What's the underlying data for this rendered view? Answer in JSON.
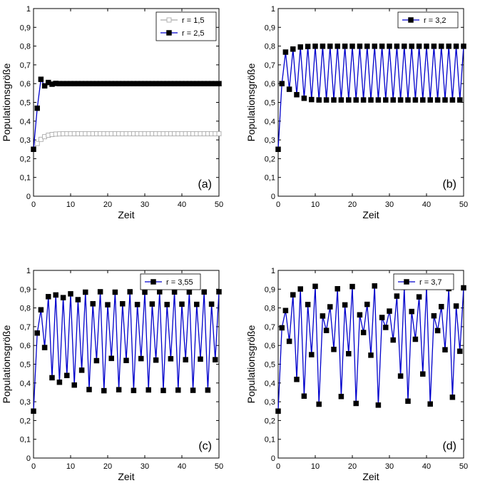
{
  "chart_data": [
    {
      "type": "line",
      "panel_label": "(a)",
      "xlabel": "Zeit",
      "ylabel": "Populationsgröße",
      "xlim": [
        0,
        50
      ],
      "ylim": [
        0,
        1
      ],
      "xticks": [
        "0",
        "10",
        "20",
        "30",
        "40",
        "50"
      ],
      "yticks": [
        "0",
        "0,1",
        "0,2",
        "0,3",
        "0,4",
        "0,5",
        "0,6",
        "0,7",
        "0,8",
        "0,9",
        "1"
      ],
      "legend_position": "top-right",
      "series": [
        {
          "name": "r = 1,5",
          "color": "#aaaaaa",
          "marker": "open-square",
          "x": [
            0,
            1,
            2,
            3,
            4,
            5,
            6,
            7,
            8,
            9,
            10,
            11,
            12,
            13,
            14,
            15,
            16,
            17,
            18,
            19,
            20,
            21,
            22,
            23,
            24,
            25,
            26,
            27,
            28,
            29,
            30,
            31,
            32,
            33,
            34,
            35,
            36,
            37,
            38,
            39,
            40,
            41,
            42,
            43,
            44,
            45,
            46,
            47,
            48,
            49,
            50
          ],
          "values": [
            0.25,
            0.281,
            0.303,
            0.317,
            0.325,
            0.329,
            0.331,
            0.332,
            0.333,
            0.333,
            0.333,
            0.333,
            0.333,
            0.333,
            0.333,
            0.333,
            0.333,
            0.333,
            0.333,
            0.333,
            0.333,
            0.333,
            0.333,
            0.333,
            0.333,
            0.333,
            0.333,
            0.333,
            0.333,
            0.333,
            0.333,
            0.333,
            0.333,
            0.333,
            0.333,
            0.333,
            0.333,
            0.333,
            0.333,
            0.333,
            0.333,
            0.333,
            0.333,
            0.333,
            0.333,
            0.333,
            0.333,
            0.333,
            0.333,
            0.333,
            0.333
          ]
        },
        {
          "name": "r = 2,5",
          "color": "#0000cc",
          "marker": "filled-square",
          "x": [
            0,
            1,
            2,
            3,
            4,
            5,
            6,
            7,
            8,
            9,
            10,
            11,
            12,
            13,
            14,
            15,
            16,
            17,
            18,
            19,
            20,
            21,
            22,
            23,
            24,
            25,
            26,
            27,
            28,
            29,
            30,
            31,
            32,
            33,
            34,
            35,
            36,
            37,
            38,
            39,
            40,
            41,
            42,
            43,
            44,
            45,
            46,
            47,
            48,
            49,
            50
          ],
          "values": [
            0.25,
            0.469,
            0.623,
            0.588,
            0.606,
            0.597,
            0.601,
            0.6,
            0.6,
            0.6,
            0.6,
            0.6,
            0.6,
            0.6,
            0.6,
            0.6,
            0.6,
            0.6,
            0.6,
            0.6,
            0.6,
            0.6,
            0.6,
            0.6,
            0.6,
            0.6,
            0.6,
            0.6,
            0.6,
            0.6,
            0.6,
            0.6,
            0.6,
            0.6,
            0.6,
            0.6,
            0.6,
            0.6,
            0.6,
            0.6,
            0.6,
            0.6,
            0.6,
            0.6,
            0.6,
            0.6,
            0.6,
            0.6,
            0.6,
            0.6,
            0.6
          ]
        }
      ]
    },
    {
      "type": "line",
      "panel_label": "(b)",
      "xlabel": "Zeit",
      "ylabel": "Populationsgröße",
      "xlim": [
        0,
        50
      ],
      "ylim": [
        0,
        1
      ],
      "xticks": [
        "0",
        "10",
        "20",
        "30",
        "40",
        "50"
      ],
      "yticks": [
        "0",
        "0,1",
        "0,2",
        "0,3",
        "0,4",
        "0,5",
        "0,6",
        "0,7",
        "0,8",
        "0,9",
        "1"
      ],
      "legend_position": "top-right",
      "series": [
        {
          "name": "r = 3,2",
          "color": "#0000cc",
          "marker": "filled-square",
          "x": [
            0,
            1,
            2,
            3,
            4,
            5,
            6,
            7,
            8,
            9,
            10,
            11,
            12,
            13,
            14,
            15,
            16,
            17,
            18,
            19,
            20,
            21,
            22,
            23,
            24,
            25,
            26,
            27,
            28,
            29,
            30,
            31,
            32,
            33,
            34,
            35,
            36,
            37,
            38,
            39,
            40,
            41,
            42,
            43,
            44,
            45,
            46,
            47,
            48,
            49,
            50
          ],
          "values": [
            0.25,
            0.6,
            0.768,
            0.57,
            0.784,
            0.541,
            0.795,
            0.522,
            0.798,
            0.515,
            0.799,
            0.513,
            0.799,
            0.513,
            0.799,
            0.513,
            0.799,
            0.513,
            0.799,
            0.513,
            0.799,
            0.513,
            0.799,
            0.513,
            0.799,
            0.513,
            0.799,
            0.513,
            0.799,
            0.513,
            0.799,
            0.513,
            0.799,
            0.513,
            0.799,
            0.513,
            0.799,
            0.513,
            0.799,
            0.513,
            0.799,
            0.513,
            0.799,
            0.513,
            0.799,
            0.513,
            0.799,
            0.513,
            0.799,
            0.513,
            0.799
          ]
        }
      ]
    },
    {
      "type": "line",
      "panel_label": "(c)",
      "xlabel": "Zeit",
      "ylabel": "Populationsgröße",
      "xlim": [
        0,
        50
      ],
      "ylim": [
        0,
        1
      ],
      "xticks": [
        "0",
        "10",
        "20",
        "30",
        "40",
        "50"
      ],
      "yticks": [
        "0",
        "0,1",
        "0,2",
        "0,3",
        "0,4",
        "0,5",
        "0,6",
        "0,7",
        "0,8",
        "0,9",
        "1"
      ],
      "legend_position": "top-right",
      "series": [
        {
          "name": "r = 3,55",
          "color": "#0000cc",
          "marker": "filled-square",
          "x": [
            0,
            1,
            2,
            3,
            4,
            5,
            6,
            7,
            8,
            9,
            10,
            11,
            12,
            13,
            14,
            15,
            16,
            17,
            18,
            19,
            20,
            21,
            22,
            23,
            24,
            25,
            26,
            27,
            28,
            29,
            30,
            31,
            32,
            33,
            34,
            35,
            36,
            37,
            38,
            39,
            40,
            41,
            42,
            43,
            44,
            45,
            46,
            47,
            48,
            49,
            50
          ],
          "values": [
            0.25,
            0.666,
            0.79,
            0.589,
            0.86,
            0.428,
            0.869,
            0.404,
            0.855,
            0.44,
            0.875,
            0.389,
            0.844,
            0.468,
            0.884,
            0.365,
            0.822,
            0.519,
            0.886,
            0.359,
            0.817,
            0.531,
            0.884,
            0.364,
            0.822,
            0.52,
            0.886,
            0.36,
            0.818,
            0.53,
            0.884,
            0.363,
            0.821,
            0.522,
            0.886,
            0.36,
            0.818,
            0.529,
            0.885,
            0.362,
            0.82,
            0.524,
            0.885,
            0.361,
            0.819,
            0.527,
            0.885,
            0.362,
            0.82,
            0.524,
            0.886
          ]
        }
      ]
    },
    {
      "type": "line",
      "panel_label": "(d)",
      "xlabel": "Zeit",
      "ylabel": "Populationsgröße",
      "xlim": [
        0,
        50
      ],
      "ylim": [
        0,
        1
      ],
      "xticks": [
        "0",
        "10",
        "20",
        "30",
        "40",
        "50"
      ],
      "yticks": [
        "0",
        "0,1",
        "0,2",
        "0,3",
        "0,4",
        "0,5",
        "0,6",
        "0,7",
        "0,8",
        "0,9",
        "1"
      ],
      "legend_position": "top-right",
      "series": [
        {
          "name": "r = 3,7",
          "color": "#0000cc",
          "marker": "filled-square",
          "x": [
            0,
            1,
            2,
            3,
            4,
            5,
            6,
            7,
            8,
            9,
            10,
            11,
            12,
            13,
            14,
            15,
            16,
            17,
            18,
            19,
            20,
            21,
            22,
            23,
            24,
            25,
            26,
            27,
            28,
            29,
            30,
            31,
            32,
            33,
            34,
            35,
            36,
            37,
            38,
            39,
            40,
            41,
            42,
            43,
            44,
            45,
            46,
            47,
            48,
            49,
            50
          ],
          "values": [
            0.25,
            0.694,
            0.786,
            0.622,
            0.87,
            0.419,
            0.901,
            0.33,
            0.818,
            0.551,
            0.915,
            0.287,
            0.757,
            0.68,
            0.806,
            0.579,
            0.902,
            0.328,
            0.816,
            0.556,
            0.914,
            0.291,
            0.763,
            0.669,
            0.819,
            0.548,
            0.917,
            0.282,
            0.749,
            0.696,
            0.783,
            0.629,
            0.863,
            0.437,
            0.91,
            0.303,
            0.781,
            0.633,
            0.859,
            0.448,
            0.915,
            0.288,
            0.758,
            0.679,
            0.807,
            0.577,
            0.903,
            0.324,
            0.81,
            0.569,
            0.907
          ]
        }
      ]
    }
  ]
}
